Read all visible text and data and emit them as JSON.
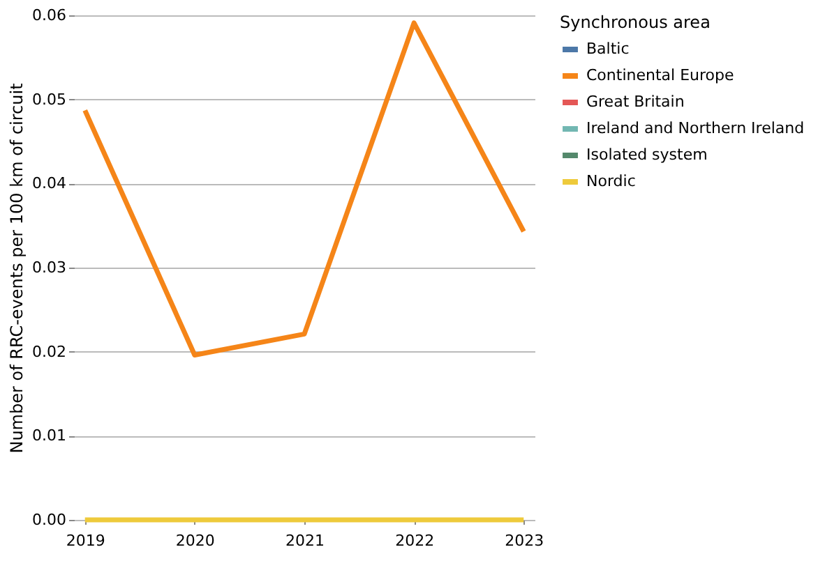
{
  "chart_data": {
    "type": "line",
    "ylabel": "Number of RRC-events per 100 km of circuit",
    "legend_title": "Synchronous area",
    "categories": [
      "2019",
      "2020",
      "2021",
      "2022",
      "2023"
    ],
    "series": [
      {
        "name": "Baltic",
        "color": "#4c78a8",
        "values": [
          null,
          null,
          null,
          null,
          null
        ]
      },
      {
        "name": "Continental Europe",
        "color": "#f58518",
        "values": [
          0.0487,
          0.0196,
          0.0221,
          0.0591,
          0.0343
        ]
      },
      {
        "name": "Great Britain",
        "color": "#e45756",
        "values": [
          null,
          null,
          null,
          null,
          null
        ]
      },
      {
        "name": "Ireland and Northern Ireland",
        "color": "#72b7b2",
        "values": [
          null,
          null,
          null,
          null,
          null
        ]
      },
      {
        "name": "Isolated system",
        "color": "#54896c",
        "values": [
          null,
          null,
          null,
          null,
          null
        ]
      },
      {
        "name": "Nordic",
        "color": "#eeca3b",
        "values": [
          0,
          0,
          0,
          0,
          0
        ]
      }
    ],
    "ylim": [
      0,
      0.06
    ],
    "yticks": [
      {
        "value": 0,
        "label": "0.00"
      },
      0.01,
      0.02,
      0.03,
      0.04,
      0.05,
      0.06
    ],
    "grid": "y",
    "legend": "right",
    "marker": "none",
    "line_style": "solid"
  }
}
